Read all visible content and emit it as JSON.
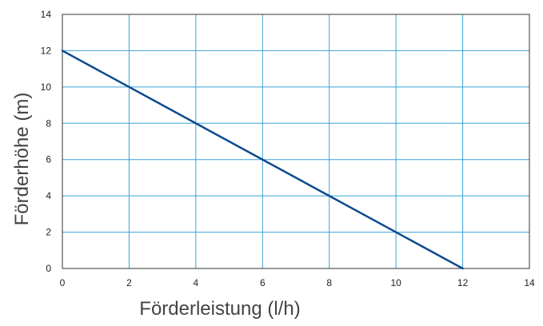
{
  "chart_data": {
    "type": "line",
    "title": "",
    "xlabel": "Förderleistung (l/h)",
    "ylabel": "Förderhöhe (m)",
    "xlim": [
      0,
      14
    ],
    "ylim": [
      0,
      14
    ],
    "x_ticks": [
      0,
      2,
      4,
      6,
      8,
      10,
      12,
      14
    ],
    "y_ticks": [
      0,
      2,
      4,
      6,
      8,
      10,
      12,
      14
    ],
    "x_tick_labels": [
      "0",
      "2",
      "4",
      "6",
      "8",
      "10",
      "12",
      "14"
    ],
    "y_tick_labels": [
      "0",
      "2",
      "4",
      "6",
      "8",
      "10",
      "12",
      "14"
    ],
    "grid": true,
    "legend": "none",
    "series": [
      {
        "x": [
          0,
          12
        ],
        "y": [
          12,
          0
        ],
        "color": "#0d4a8f"
      }
    ],
    "colors": {
      "grid": "#3aa3d8",
      "frame": "#333333",
      "line": "#0d4a8f"
    }
  }
}
